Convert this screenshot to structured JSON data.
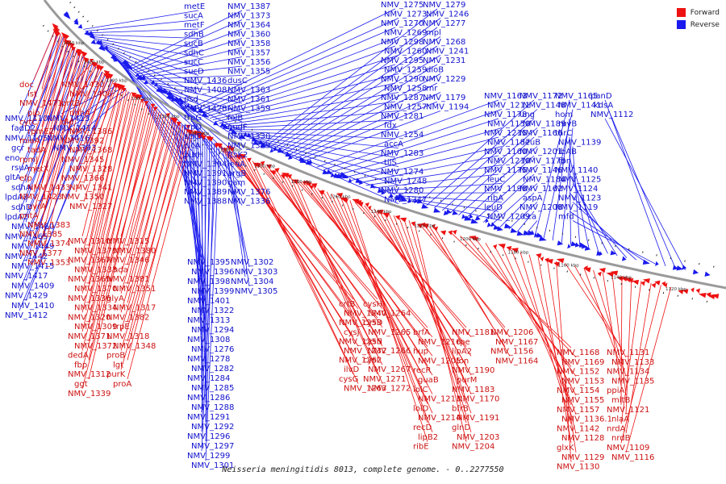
{
  "title": "Neisseria meningitidis 8013, complete genome. - 0..2277550",
  "legend": [
    {
      "label": "Forward",
      "color": "#ee1111"
    },
    {
      "label": "Reverse",
      "color": "#1a1aee"
    }
  ],
  "colors": {
    "forward": "#ee1111",
    "reverse": "#1a1aee",
    "backbone": "#888888"
  },
  "ticks": [
    "1440 kbp",
    "1420 kbp",
    "1400 kbp",
    "1380 kbp",
    "1360 kbp",
    "1340 kbp",
    "1320 kbp",
    "1300 kbp",
    "1280 kbp",
    "1260 kbp",
    "1240 kbp",
    "1220 kbp",
    "1200 kbp",
    "1180 kbp",
    "1160 kbp",
    "1140 kbp",
    "1120 kbp"
  ],
  "reverse_labels": [
    "metE",
    "sucA",
    "metF",
    "sdhB",
    "sucB",
    "sdhC",
    "sucC",
    "sucD",
    "NMV_1436",
    "NMV_1408",
    "psd",
    "NMV_1428",
    "trpG",
    "trpD",
    "serB",
    "clcA",
    "purH",
    "NMV_1394",
    "NMV_1391",
    "NMV_1390",
    "NMV_1389",
    "NMV_1388",
    "NMV_1387",
    "NMV_1373",
    "NMV_1364",
    "NMV_1360",
    "NMV_1358",
    "NMV_1357",
    "NMV_1356",
    "NMV_1355",
    "dusC",
    "NMV_1363",
    "NMV_1361",
    "NMV_1359",
    "folB",
    "nudF",
    "NMV_1330",
    "NMV_1329",
    "ftsK2",
    "leuA",
    "argB",
    "gam",
    "NMV_1376",
    "NMV_1336",
    "NMV_1275",
    "NMV_1273",
    "NMV_1270",
    "NMV_1269",
    "NMV_1298",
    "NMV_1260",
    "NMV_1295",
    "NMV_1259",
    "NMV_1290",
    "NMV_1258",
    "NMV_1287",
    "NMV_1257",
    "NMV_1281",
    "fdx",
    "NMV_1254",
    "accA",
    "NMV_1283",
    "tilS",
    "NMV_1274",
    "NMV_1248",
    "NMV_1280",
    "NMV_1247",
    "NMV_1279",
    "NMV_1246",
    "NMV_1277",
    "mpl",
    "NMV_1268",
    "NMV_1241",
    "NMV_1231",
    "dioB",
    "NMV_1229",
    "rnr",
    "NMV_1179",
    "NMV_1194",
    "NMV_1163",
    "NMV_1211",
    "NMV_1178",
    "NMV_1150",
    "NMV_1215",
    "NMV_1187",
    "NMV_1160",
    "NMV_1210",
    "NMV_1175",
    "leuC",
    "NMV_1198",
    "ribA",
    "leuD",
    "NMV_1209",
    "NMV_1172",
    "NMV_1148",
    "ung",
    "NMV_1189",
    "NMV_1166",
    "leuB",
    "NMV_1201",
    "NMV_1173",
    "NMV_1146",
    "NMV_1184",
    "NMV_1162",
    "aspA",
    "NMV_1208",
    "cca",
    "NMV_1165",
    "NMV_1141",
    "hom",
    "ruvB",
    "thrC",
    "NMV_1139",
    "ribAB",
    "fpr",
    "NMV_1140",
    "NMV_1125",
    "NMV_1124",
    "NMV_1123",
    "NMV_1119",
    "mfd",
    "panD",
    "kdsA",
    "NMV_1112",
    "NMV_1110",
    "fadD2",
    "NMV_1105",
    "gcr",
    "eno",
    "rsuA",
    "gltA",
    "sdhA",
    "lpdA3",
    "sdhD",
    "lpdA2",
    "NMV_1460",
    "NMV_1465",
    "NMV_1449",
    "NMV_1442",
    "NMV_1415",
    "NMV_1417",
    "NMV_1409",
    "NMV_1429",
    "NMV_1410",
    "NMV_1412",
    "NMV_1413",
    "NMV_1414",
    "NMV_1416",
    "NMV_1393",
    "NMV_1395",
    "NMV_1396",
    "NMV_1398",
    "NMV_1399",
    "NMV_1401",
    "NMV_1322",
    "NMV_1313",
    "NMV_1294",
    "NMV_1308",
    "NMV_1276",
    "NMV_1278",
    "NMV_1282",
    "NMV_1284",
    "NMV_1285",
    "NMV_1286",
    "NMV_1288",
    "NMV_1291",
    "NMV_1292",
    "NMV_1296",
    "NMV_1297",
    "NMV_1299",
    "NMV_1301",
    "NMV_1302",
    "NMV_1303",
    "NMV_1304",
    "NMV_1305"
  ],
  "forward_labels": [
    "doc",
    "lst",
    "NMV_1471",
    "pip",
    "cytC",
    "rpmE2",
    "miaA",
    "tadA",
    "rpmJ",
    "metX",
    "efp",
    "NMV_1433",
    "NMV_1423",
    "uvrA",
    "pntA",
    "NMV_1383",
    "NMV_1385",
    "NMV_1374",
    "NMV_1377",
    "NMV_1353",
    "NMV_1430",
    "NMV_1406",
    "pntB",
    "nhhA",
    "dld",
    "NMV_1386",
    "NMV_1392",
    "NMV_1368",
    "NMV_1345",
    "NMV_1328",
    "NMV_1366",
    "NMV_1341",
    "NMV_1350",
    "NMV_1327",
    "NMV_1310",
    "NMV_1379",
    "NMV_1367",
    "NMV_1333",
    "NMV_1369",
    "NMV_1370",
    "NMV_1336",
    "NMV_1334",
    "NMV_1320",
    "NMV_1309",
    "NMV_1371",
    "NMV_1372",
    "dedA",
    "fbp",
    "NMV_1312",
    "ggt",
    "NMV_1339",
    "NMV_1315",
    "NMV_1380",
    "NMV_1346",
    "hda",
    "NMV_1381",
    "NMV_1351",
    "glyA",
    "NMV_1317",
    "NMV_1382",
    "trpE",
    "NMV_1318",
    "NMV_1348",
    "proB",
    "lgt",
    "purK",
    "proA",
    "crtB",
    "NMV_1240",
    "NMV_1253",
    "cysJ",
    "NMV_1255",
    "NMV_1232",
    "NMV_1262",
    "ilvD",
    "cysG",
    "NMV_1263",
    "cysH",
    "NMV_1264",
    "cysD",
    "NMV_1265",
    "cysN",
    "NMV_1266",
    "cysI",
    "NMV_1267",
    "NMV_1271",
    "NMV_1272",
    "brfA",
    "NMV_1216",
    "hup",
    "NMV_1205",
    "recR",
    "guaB",
    "lolC",
    "NMV_1213",
    "lolD",
    "NMV_1214",
    "recD",
    "lipB2",
    "ribE",
    "NMV_1181",
    "rpe",
    "lipA2",
    "lon",
    "NMV_1190",
    "purM",
    "NMV_1183",
    "NMV_1170",
    "bfrB",
    "NMV_1191",
    "glnD",
    "NMV_1203",
    "NMV_1204",
    "NMV_1206",
    "NMV_1167",
    "NMV_1156",
    "NMV_1164",
    "NMV_1168",
    "NMV_1169",
    "NMV_1152",
    "NMV_1153",
    "NMV_1154",
    "NMV_1155",
    "NMV_1157",
    "NMV_1136.1",
    "NMV_1142",
    "NMV_1128",
    "glxK",
    "NMV_1129",
    "NMV_1130",
    "NMV_1131",
    "NMV_1133",
    "NMV_1134",
    "NMV_1135",
    "ppiA",
    "mltB",
    "NMV_1121",
    "nlaA",
    "nrdA",
    "nrdB",
    "NMV_1109",
    "NMV_1116"
  ]
}
